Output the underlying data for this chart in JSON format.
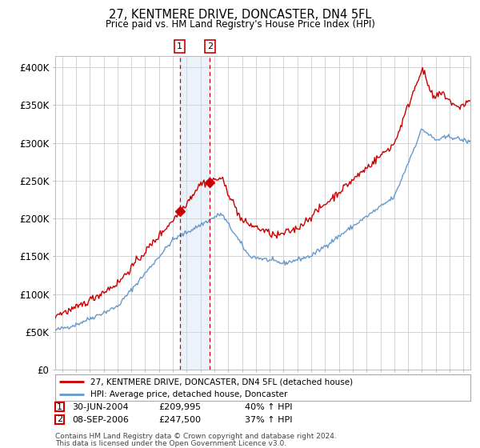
{
  "title": "27, KENTMERE DRIVE, DONCASTER, DN4 5FL",
  "subtitle": "Price paid vs. HM Land Registry's House Price Index (HPI)",
  "ylabel_ticks": [
    "£0",
    "£50K",
    "£100K",
    "£150K",
    "£200K",
    "£250K",
    "£300K",
    "£350K",
    "£400K"
  ],
  "ytick_values": [
    0,
    50000,
    100000,
    150000,
    200000,
    250000,
    300000,
    350000,
    400000
  ],
  "ylim": [
    0,
    415000
  ],
  "legend_line1": "27, KENTMERE DRIVE, DONCASTER, DN4 5FL (detached house)",
  "legend_line2": "HPI: Average price, detached house, Doncaster",
  "sale1_date": "30-JUN-2004",
  "sale1_price": "£209,995",
  "sale1_hpi": "40% ↑ HPI",
  "sale1_x": 2004.5,
  "sale1_y": 209995,
  "sale2_date": "08-SEP-2006",
  "sale2_price": "£247,500",
  "sale2_hpi": "37% ↑ HPI",
  "sale2_x": 2006.67,
  "sale2_y": 247500,
  "footnote1": "Contains HM Land Registry data © Crown copyright and database right 2024.",
  "footnote2": "This data is licensed under the Open Government Licence v3.0.",
  "line_color_red": "#cc0000",
  "line_color_blue": "#6699cc",
  "background_color": "#ffffff",
  "grid_color": "#cccccc",
  "shade_color": "#c8dcf0",
  "xmin": 1995.5,
  "xmax": 2025.5
}
